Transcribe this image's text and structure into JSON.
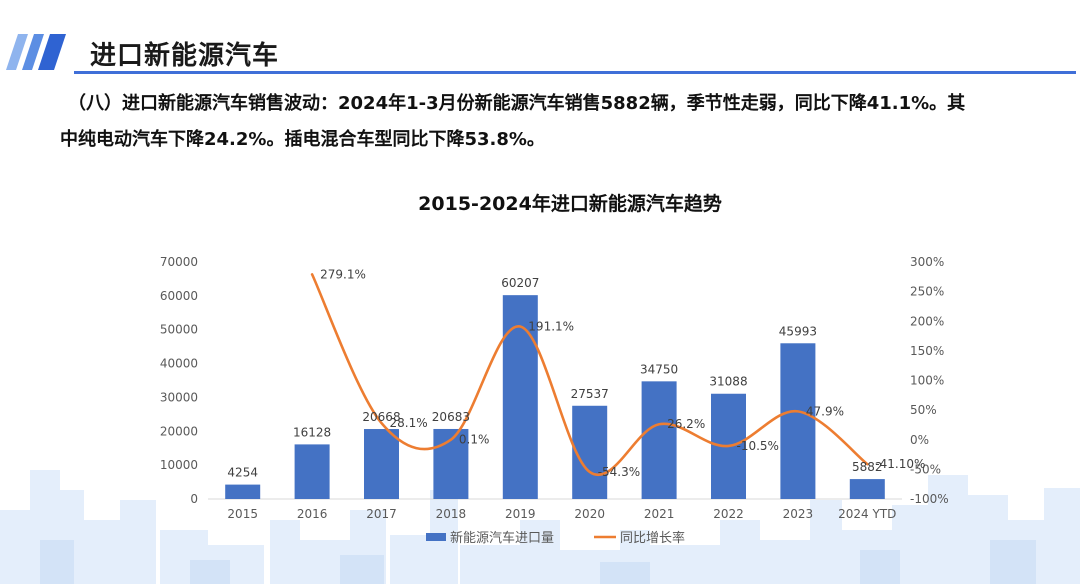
{
  "header": {
    "title": "进口新能源汽车"
  },
  "description": {
    "line1": "（八）进口新能源汽车销售波动：2024年1-3月份新能源汽车销售5882辆，季节性走弱，同比下降41.1%。其",
    "line2": "中纯电动汽车下降24.2%。插电混合车型同比下降53.8%。"
  },
  "colors": {
    "bar": "#4472c4",
    "line": "#ed7d31",
    "accent": "#3f6fd8",
    "skyline": "#dde9f8"
  },
  "chart_data": {
    "type": "bar",
    "title": "2015-2024年进口新能源汽车趋势",
    "categories": [
      "2015",
      "2016",
      "2017",
      "2018",
      "2019",
      "2020",
      "2021",
      "2022",
      "2023",
      "2024 YTD"
    ],
    "series": [
      {
        "name": "新能源汽车进口量",
        "type": "bar",
        "axis": "left",
        "values": [
          4254,
          16128,
          20668,
          20683,
          60207,
          27537,
          34750,
          31088,
          45993,
          5882
        ],
        "labels": [
          "4254",
          "16128",
          "20668",
          "20683",
          "60207",
          "27537",
          "34750",
          "31088",
          "45993",
          "5882"
        ]
      },
      {
        "name": "同比增长率",
        "type": "line",
        "axis": "right",
        "values": [
          null,
          279.1,
          28.1,
          0.1,
          191.1,
          -54.3,
          26.2,
          -10.5,
          47.9,
          -41.1
        ],
        "labels": [
          "",
          "279.1%",
          "28.1%",
          "0.1%",
          "191.1%",
          "-54.3%",
          "26.2%",
          "-10.5%",
          "47.9%",
          "-41.10%"
        ]
      }
    ],
    "y_left": {
      "min": 0,
      "max": 70000,
      "ticks": [
        0,
        10000,
        20000,
        30000,
        40000,
        50000,
        60000,
        70000
      ],
      "tick_labels": [
        "0",
        "10000",
        "20000",
        "30000",
        "40000",
        "50000",
        "60000",
        "70000"
      ]
    },
    "y_right": {
      "min": -100,
      "max": 300,
      "ticks": [
        -100,
        -50,
        0,
        50,
        100,
        150,
        200,
        250,
        300
      ],
      "tick_labels": [
        "-100%",
        "-50%",
        "0%",
        "50%",
        "100%",
        "150%",
        "200%",
        "250%",
        "300%"
      ]
    },
    "legend_position": "bottom",
    "grid": false
  }
}
